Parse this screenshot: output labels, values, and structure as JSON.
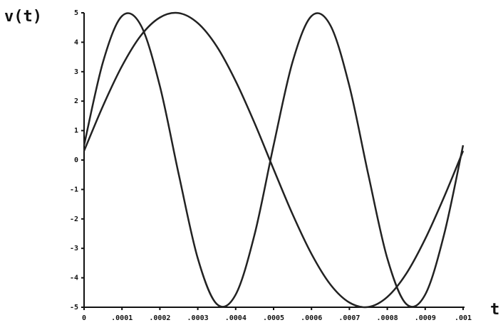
{
  "chart_data": {
    "type": "line",
    "ylabel": "v(t)",
    "xlabel": "t",
    "x": [
      0,
      5e-05,
      0.0001,
      0.00015,
      0.0002,
      0.00025,
      0.0003,
      0.00035,
      0.0004,
      0.00045,
      0.0005,
      0.00055,
      0.0006,
      0.00065,
      0.0007,
      0.00075,
      0.0008,
      0.00085,
      0.0009,
      0.00095,
      0.001
    ],
    "series": [
      {
        "color": "#222222",
        "values": [
          0.5,
          3.33,
          4.89,
          4.57,
          2.51,
          -0.5,
          -3.34,
          -4.89,
          -4.57,
          -2.52,
          0.5,
          3.33,
          4.89,
          4.57,
          2.51,
          -0.5,
          -3.34,
          -4.89,
          -4.57,
          -2.52,
          0.5
        ]
      },
      {
        "color": "#222222",
        "values": [
          0.31,
          1.84,
          3.19,
          4.23,
          4.84,
          4.99,
          4.65,
          3.86,
          2.68,
          1.25,
          -0.31,
          -1.84,
          -3.19,
          -4.23,
          -4.84,
          -4.99,
          -4.65,
          -3.86,
          -2.68,
          -1.25,
          0.31
        ]
      }
    ],
    "xlim": [
      0,
      0.001
    ],
    "xticks": [
      {
        "value": 0,
        "label": "0"
      },
      {
        "value": 0.0001,
        "label": ".0001"
      },
      {
        "value": 0.0002,
        "label": ".0002"
      },
      {
        "value": 0.0003,
        "label": ".0003"
      },
      {
        "value": 0.0004,
        "label": ".0004"
      },
      {
        "value": 0.0005,
        "label": ".0005"
      },
      {
        "value": 0.0006,
        "label": ".0006"
      },
      {
        "value": 0.0007,
        "label": ".0007"
      },
      {
        "value": 0.0008,
        "label": ".0008"
      },
      {
        "value": 0.0009,
        "label": ".0009"
      },
      {
        "value": 0.001,
        "label": ".001"
      }
    ],
    "ylim": [
      -5,
      5
    ],
    "yticks": [
      -5,
      -4,
      -3,
      -2,
      -1,
      0,
      1,
      2,
      3,
      4,
      5
    ]
  }
}
